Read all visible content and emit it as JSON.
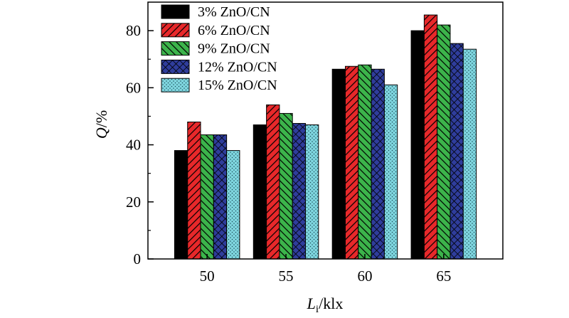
{
  "chart_data": {
    "type": "bar",
    "xlabel": {
      "main": "L",
      "sub": "i",
      "unit": "/klx"
    },
    "ylabel": {
      "main": "Q",
      "unit": "/%"
    },
    "categories": [
      "50",
      "55",
      "60",
      "65"
    ],
    "ylim": [
      0,
      90
    ],
    "yticks": [
      0,
      20,
      40,
      60,
      80
    ],
    "series": [
      {
        "name": "3% ZnO/CN",
        "color": "#000000",
        "pattern": "solid",
        "values": [
          38,
          47,
          66.5,
          80
        ]
      },
      {
        "name": "6% ZnO/CN",
        "color": "#e8282a",
        "pattern": "diagonal-lines",
        "values": [
          48,
          54,
          67.5,
          85.5
        ]
      },
      {
        "name": "9% ZnO/CN",
        "color": "#3cb44b",
        "pattern": "back-diagonal-lines",
        "values": [
          43.5,
          51,
          68,
          82
        ]
      },
      {
        "name": "12% ZnO/CN",
        "color": "#2f3d9c",
        "pattern": "crosshatch",
        "values": [
          43.5,
          47.5,
          66.5,
          75.5
        ]
      },
      {
        "name": "15% ZnO/CN",
        "color": "#7fd6df",
        "pattern": "dots",
        "values": [
          38,
          47,
          61,
          73.5
        ]
      }
    ],
    "legend": "top-left",
    "grid": false
  }
}
